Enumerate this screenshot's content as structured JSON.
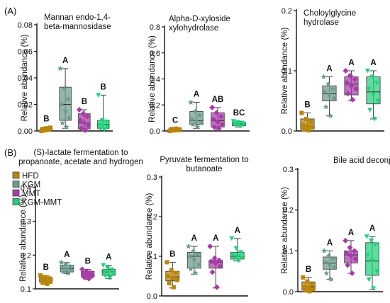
{
  "figure": {
    "panel_labels": [
      "(A)",
      "(B)"
    ]
  },
  "chart_data": [
    {
      "type": "box",
      "title": "Mannan endo-1,4-\nbeta-mannosidase",
      "ylabel": "Relative abundance (%)",
      "ylim": [
        0,
        0.08
      ],
      "yticks": [
        "0.00",
        "0.02",
        "0.04",
        "0.06",
        "0.08"
      ],
      "groups": [
        {
          "name": "HFD",
          "q1": 0.0003,
          "median": 0.0012,
          "q3": 0.0022,
          "min": 0.0,
          "max": 0.003,
          "points": [
            0.0,
            0.0005,
            0.001,
            0.0015,
            0.002,
            0.0025,
            0.0012,
            0.0018
          ],
          "letter": "B"
        },
        {
          "name": "KGM",
          "q1": 0.008,
          "median": 0.02,
          "q3": 0.033,
          "min": 0.002,
          "max": 0.047,
          "points": [
            0.047,
            0.032,
            0.024,
            0.02,
            0.015,
            0.01,
            0.006,
            0.003
          ],
          "letter": "A"
        },
        {
          "name": "MMT",
          "q1": 0.0015,
          "median": 0.006,
          "q3": 0.013,
          "min": 0.0,
          "max": 0.016,
          "points": [
            0.016,
            0.013,
            0.011,
            0.008,
            0.006,
            0.004,
            0.002,
            0.0005
          ],
          "letter": "B"
        },
        {
          "name": "KGM-MMT",
          "q1": 0.002,
          "median": 0.005,
          "q3": 0.008,
          "min": 0.0005,
          "max": 0.027,
          "points": [
            0.027,
            0.008,
            0.007,
            0.005,
            0.004,
            0.003,
            0.002,
            0.001
          ],
          "letter": "B"
        }
      ]
    },
    {
      "type": "box",
      "title": "Alpha-D-xyloside\nxylohydrolase",
      "ylabel": "Relative abundance (%)",
      "ylim": [
        0,
        0.8
      ],
      "yticks": [
        "0.0",
        "0.2",
        "0.4",
        "0.6",
        "0.8"
      ],
      "groups": [
        {
          "name": "HFD",
          "q1": 0.002,
          "median": 0.006,
          "q3": 0.012,
          "min": 0.0,
          "max": 0.018,
          "points": [
            0.0,
            0.004,
            0.006,
            0.008,
            0.01,
            0.012,
            0.015,
            0.018
          ],
          "letter": "C"
        },
        {
          "name": "KGM",
          "q1": 0.05,
          "median": 0.08,
          "q3": 0.15,
          "min": 0.02,
          "max": 0.22,
          "points": [
            0.22,
            0.15,
            0.12,
            0.09,
            0.08,
            0.06,
            0.05,
            0.03
          ],
          "letter": "A"
        },
        {
          "name": "MMT",
          "q1": 0.03,
          "median": 0.08,
          "q3": 0.14,
          "min": 0.01,
          "max": 0.18,
          "points": [
            0.18,
            0.14,
            0.11,
            0.09,
            0.07,
            0.05,
            0.03,
            0.02
          ],
          "letter": "AB"
        },
        {
          "name": "KGM-MMT",
          "q1": 0.04,
          "median": 0.055,
          "q3": 0.065,
          "min": 0.03,
          "max": 0.075,
          "points": [
            0.075,
            0.068,
            0.062,
            0.057,
            0.053,
            0.048,
            0.042,
            0.035
          ],
          "letter": "BC"
        }
      ]
    },
    {
      "type": "box",
      "title": "Choloylglycine\nhydrolase",
      "ylabel": "Relative abundance (%)",
      "ylim": [
        0,
        0.2
      ],
      "yticks": [
        "0.0",
        "0.1",
        "0.2"
      ],
      "groups": [
        {
          "name": "HFD",
          "q1": 0.003,
          "median": 0.008,
          "q3": 0.02,
          "min": 0.0,
          "max": 0.03,
          "points": [
            0.03,
            0.02,
            0.015,
            0.01,
            0.008,
            0.006,
            0.003,
            0.001
          ],
          "letter": "B"
        },
        {
          "name": "KGM",
          "q1": 0.05,
          "median": 0.062,
          "q3": 0.075,
          "min": 0.025,
          "max": 0.09,
          "points": [
            0.09,
            0.078,
            0.07,
            0.065,
            0.06,
            0.055,
            0.04,
            0.025
          ],
          "letter": "A"
        },
        {
          "name": "MMT",
          "q1": 0.06,
          "median": 0.078,
          "q3": 0.09,
          "min": 0.05,
          "max": 0.1,
          "points": [
            0.1,
            0.092,
            0.086,
            0.08,
            0.075,
            0.07,
            0.062,
            0.052
          ],
          "letter": "A"
        },
        {
          "name": "KGM-MMT",
          "q1": 0.045,
          "median": 0.065,
          "q3": 0.09,
          "min": 0.02,
          "max": 0.1,
          "points": [
            0.1,
            0.09,
            0.08,
            0.07,
            0.06,
            0.05,
            0.035,
            0.02
          ],
          "letter": "A"
        }
      ]
    },
    {
      "type": "box",
      "title": "(S)-lactate fermentation to\npropanoate, acetate and hydrogen",
      "ylabel": "Relative abundance (%)",
      "ylim": [
        0.1,
        0.4
      ],
      "yticks": [
        "0.1",
        "0.2",
        "0.3",
        "0.4"
      ],
      "groups": [
        {
          "name": "HFD",
          "q1": 0.12,
          "median": 0.126,
          "q3": 0.133,
          "min": 0.115,
          "max": 0.14,
          "points": [
            0.14,
            0.135,
            0.131,
            0.127,
            0.124,
            0.121,
            0.118,
            0.115
          ],
          "letter": "B"
        },
        {
          "name": "KGM",
          "q1": 0.15,
          "median": 0.16,
          "q3": 0.17,
          "min": 0.145,
          "max": 0.178,
          "points": [
            0.178,
            0.172,
            0.167,
            0.162,
            0.158,
            0.154,
            0.15,
            0.146
          ],
          "letter": "A"
        },
        {
          "name": "MMT",
          "q1": 0.135,
          "median": 0.142,
          "q3": 0.152,
          "min": 0.128,
          "max": 0.158,
          "points": [
            0.158,
            0.152,
            0.148,
            0.144,
            0.141,
            0.138,
            0.134,
            0.13
          ],
          "letter": "B"
        },
        {
          "name": "KGM-MMT",
          "q1": 0.14,
          "median": 0.15,
          "q3": 0.158,
          "min": 0.13,
          "max": 0.17,
          "points": [
            0.17,
            0.162,
            0.157,
            0.152,
            0.148,
            0.144,
            0.138,
            0.132
          ],
          "letter": "A"
        }
      ]
    },
    {
      "type": "box",
      "title": "Pyruvate fermentation to\nbutanoate",
      "ylabel": "Relative abundance (%)",
      "ylim": [
        0,
        0.3
      ],
      "yticks": [
        "0.0",
        "0.1",
        "0.2",
        "0.3"
      ],
      "groups": [
        {
          "name": "HFD",
          "q1": 0.038,
          "median": 0.048,
          "q3": 0.062,
          "min": 0.02,
          "max": 0.085,
          "points": [
            0.085,
            0.065,
            0.058,
            0.05,
            0.045,
            0.04,
            0.032,
            0.022
          ],
          "letter": "B"
        },
        {
          "name": "KGM",
          "q1": 0.07,
          "median": 0.1,
          "q3": 0.11,
          "min": 0.055,
          "max": 0.125,
          "points": [
            0.125,
            0.112,
            0.105,
            0.1,
            0.092,
            0.08,
            0.068,
            0.058
          ],
          "letter": "A"
        },
        {
          "name": "MMT",
          "q1": 0.07,
          "median": 0.085,
          "q3": 0.09,
          "min": 0.02,
          "max": 0.125,
          "points": [
            0.125,
            0.095,
            0.09,
            0.087,
            0.083,
            0.075,
            0.06,
            0.022
          ],
          "letter": "A"
        },
        {
          "name": "KGM-MMT",
          "q1": 0.093,
          "median": 0.1,
          "q3": 0.11,
          "min": 0.088,
          "max": 0.145,
          "points": [
            0.145,
            0.12,
            0.11,
            0.105,
            0.1,
            0.097,
            0.093,
            0.09
          ],
          "letter": "A"
        }
      ]
    },
    {
      "type": "box",
      "title": "Bile acid deconjugation",
      "ylabel": "Relative abundance (%)",
      "ylim": [
        0,
        0.3
      ],
      "yticks": [
        "0.0",
        "0.1",
        "0.2",
        "0.3"
      ],
      "groups": [
        {
          "name": "HFD",
          "q1": 0.004,
          "median": 0.012,
          "q3": 0.024,
          "min": 0.0,
          "max": 0.035,
          "points": [
            0.035,
            0.025,
            0.018,
            0.013,
            0.01,
            0.006,
            0.003,
            0.001
          ],
          "letter": "B"
        },
        {
          "name": "KGM",
          "q1": 0.055,
          "median": 0.07,
          "q3": 0.085,
          "min": 0.03,
          "max": 0.1,
          "points": [
            0.1,
            0.088,
            0.08,
            0.072,
            0.067,
            0.06,
            0.045,
            0.03
          ],
          "letter": "A"
        },
        {
          "name": "MMT",
          "q1": 0.07,
          "median": 0.09,
          "q3": 0.1,
          "min": 0.045,
          "max": 0.125,
          "points": [
            0.125,
            0.108,
            0.1,
            0.094,
            0.088,
            0.08,
            0.065,
            0.045
          ],
          "letter": "A"
        },
        {
          "name": "KGM-MMT",
          "q1": 0.04,
          "median": 0.075,
          "q3": 0.12,
          "min": 0.005,
          "max": 0.135,
          "points": [
            0.135,
            0.125,
            0.115,
            0.09,
            0.075,
            0.05,
            0.03,
            0.008
          ],
          "letter": "A"
        }
      ]
    }
  ],
  "legend": {
    "placement": "left",
    "items": [
      {
        "label": "HFD",
        "color": "#b8860b"
      },
      {
        "label": "KGM",
        "color": "#6b9a8c"
      },
      {
        "label": "MMT",
        "color": "#a83ba8"
      },
      {
        "label": "KGM-MMT",
        "color": "#1fd17a"
      }
    ]
  },
  "colors": {
    "HFD": "#b8860b",
    "KGM": "#6b9a8c",
    "MMT": "#a83ba8",
    "KGM-MMT": "#1fd17a"
  },
  "marker_shapes": {
    "HFD": "square",
    "KGM": "star",
    "MMT": "diamond",
    "KGM-MMT": "triangle-down"
  }
}
